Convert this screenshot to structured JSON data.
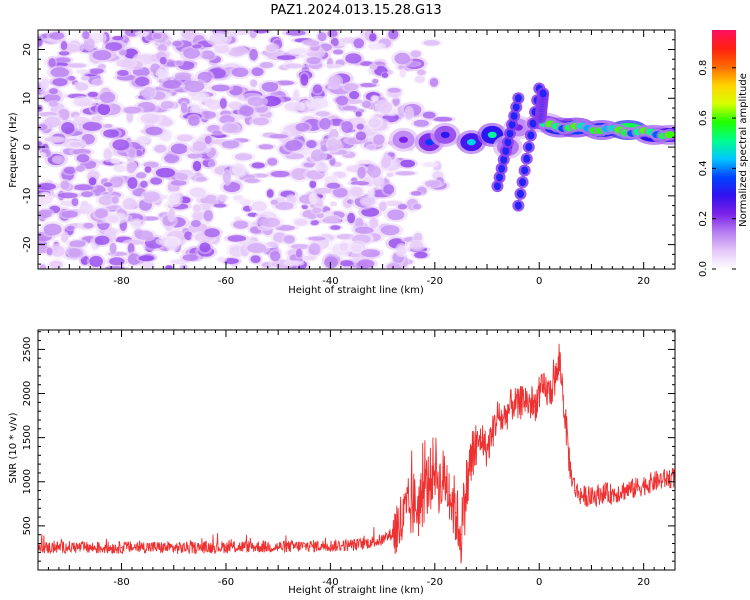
{
  "title": "PAZ1.2024.013.15.28.G13",
  "chart_data": [
    {
      "type": "heatmap",
      "title": "PAZ1.2024.013.15.28.G13",
      "xlabel": "Height of straight line (km)",
      "ylabel": "Frequency (Hz)",
      "xlim": [
        -96,
        26
      ],
      "ylim": [
        -25,
        24
      ],
      "xticks": [
        -80,
        -60,
        -40,
        -20,
        0,
        20
      ],
      "yticks": [
        -20,
        -10,
        0,
        10,
        20
      ],
      "colorbar": {
        "label": "Normalized spectral amplitude",
        "range": [
          0.0,
          0.95
        ],
        "ticks": [
          0.0,
          0.2,
          0.4,
          0.6,
          0.8
        ],
        "tick_labels": [
          "0.0",
          "0.2",
          "0.4",
          "0.6",
          "0.8"
        ],
        "colors": [
          "#ffffff",
          "#e4c6f8",
          "#b77ef2",
          "#7a22e8",
          "#3311f0",
          "#0044ff",
          "#00c8ff",
          "#00ff8a",
          "#22ff00",
          "#d8ff00",
          "#ffd200",
          "#ff6a00",
          "#ff1f10",
          "#ff1060"
        ]
      },
      "description_regions": {
        "noise_band": {
          "x_range": [
            -96,
            -15
          ],
          "freq_range": [
            -25,
            24
          ],
          "typical_amplitude": 0.12
        },
        "signal_track": [
          {
            "x": -26,
            "freq": 1.5,
            "amp": 0.22
          },
          {
            "x": -21,
            "freq": 1.0,
            "amp": 0.35
          },
          {
            "x": -18,
            "freq": 2.5,
            "amp": 0.3
          },
          {
            "x": -13,
            "freq": 1.0,
            "amp": 0.45
          },
          {
            "x": -9,
            "freq": 2.5,
            "amp": 0.5
          },
          {
            "x": -6,
            "freq": 0.0,
            "amp": 0.25
          },
          {
            "x": -4,
            "freq": 4.0,
            "amp": 0.22
          },
          {
            "x": 1,
            "freq": 5.0,
            "amp": 0.3
          },
          {
            "x": 4,
            "freq": 4.0,
            "amp": 0.55
          },
          {
            "x": 7,
            "freq": 4.0,
            "amp": 0.6
          },
          {
            "x": 12,
            "freq": 3.5,
            "amp": 0.55
          },
          {
            "x": 17,
            "freq": 3.5,
            "amp": 0.9
          },
          {
            "x": 22,
            "freq": 2.5,
            "amp": 0.5
          },
          {
            "x": 25,
            "freq": 2.5,
            "amp": 0.45
          }
        ]
      }
    },
    {
      "type": "line",
      "xlabel": "Height of straight line (km)",
      "ylabel": "SNR (10 * v/v)",
      "xlim": [
        -96,
        26
      ],
      "ylim": [
        0,
        2720
      ],
      "xticks": [
        -80,
        -60,
        -40,
        -20,
        0,
        20
      ],
      "yticks": [
        500,
        1000,
        1500,
        2000,
        2500
      ],
      "line_color": "#ee3030",
      "series": [
        {
          "x": [
            -96,
            -90,
            -85,
            -80,
            -75,
            -70,
            -65,
            -60,
            -55,
            -50,
            -45,
            -40,
            -35,
            -30,
            -28,
            -26,
            -25,
            -24,
            -23,
            -22,
            -21,
            -20,
            -19,
            -18,
            -17,
            -16,
            -15,
            -14,
            -13,
            -12,
            -11,
            -10,
            -9,
            -8,
            -7,
            -6,
            -5,
            -4,
            -3,
            -2,
            -1,
            0,
            1,
            2,
            3,
            4,
            5,
            6,
            7,
            8,
            10,
            12,
            14,
            16,
            18,
            20,
            22,
            24,
            26
          ],
          "values": [
            250,
            260,
            250,
            255,
            260,
            250,
            255,
            260,
            265,
            260,
            270,
            275,
            285,
            340,
            420,
            560,
            680,
            750,
            720,
            900,
            1000,
            1200,
            950,
            1050,
            850,
            650,
            400,
            900,
            1250,
            1400,
            1500,
            1350,
            1550,
            1750,
            1700,
            1800,
            1900,
            1850,
            1950,
            1900,
            1850,
            2000,
            2050,
            2000,
            2150,
            2350,
            1700,
            1100,
            900,
            850,
            820,
            870,
            860,
            900,
            920,
            960,
            1000,
            1030,
            1050
          ]
        }
      ]
    }
  ]
}
